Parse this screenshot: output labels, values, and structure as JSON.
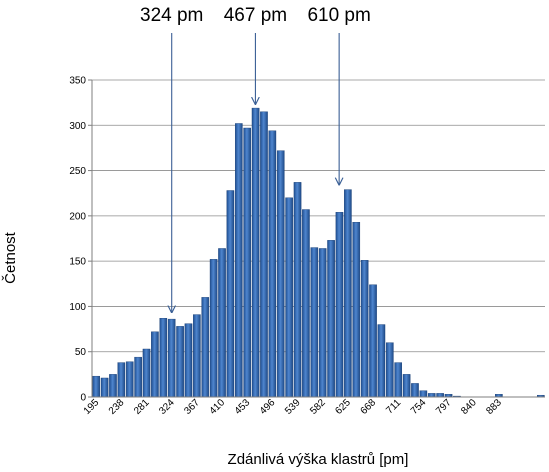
{
  "chart_data": {
    "type": "bar",
    "xlabel": "Zdánlivá výška klastrů [pm]",
    "ylabel": "Četnost",
    "ylim": [
      0,
      350
    ],
    "yticks": [
      0,
      50,
      100,
      150,
      200,
      250,
      300,
      350
    ],
    "x_tick_labels": [
      "195",
      "238",
      "281",
      "324",
      "367",
      "410",
      "453",
      "496",
      "539",
      "582",
      "625",
      "668",
      "711",
      "754",
      "797",
      "840",
      "883"
    ],
    "bin_start": 195,
    "bin_width": 14.33,
    "grid": true,
    "bar_color": "#2e62ac",
    "values": [
      23,
      21,
      25,
      38,
      39,
      44,
      53,
      72,
      87,
      86,
      78,
      81,
      91,
      110,
      152,
      164,
      228,
      302,
      297,
      319,
      315,
      294,
      272,
      220,
      237,
      207,
      165,
      164,
      173,
      204,
      229,
      193,
      151,
      124,
      80,
      60,
      38,
      25,
      15,
      7,
      4,
      4,
      3,
      1,
      0,
      0,
      0,
      0,
      3,
      0,
      0,
      0,
      0,
      2
    ],
    "annotations": [
      {
        "label": "324 pm",
        "x": 324,
        "y": 88
      },
      {
        "label": "467 pm",
        "x": 467,
        "y": 318
      },
      {
        "label": "610 pm",
        "x": 610,
        "y": 229
      }
    ]
  }
}
